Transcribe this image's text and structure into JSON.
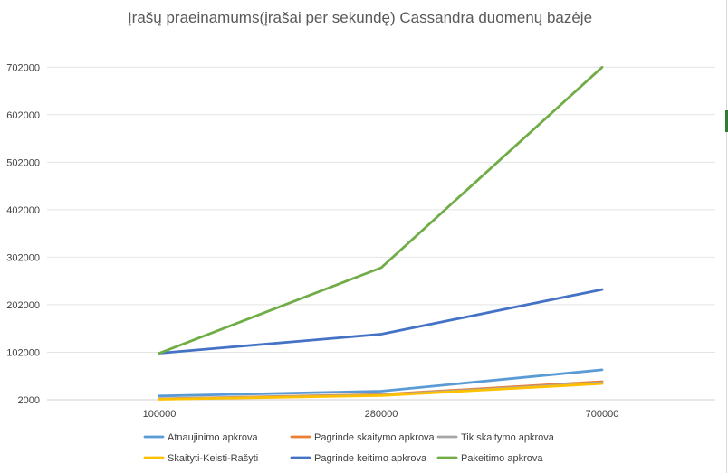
{
  "chart_data": {
    "type": "line",
    "title": "Įrašų praeinamums(įrašai per sekundę) Cassandra duomenų bazėje",
    "xlabel": "",
    "ylabel": "",
    "categories": [
      "100000",
      "280000",
      "700000"
    ],
    "ylim": [
      2000,
      752000
    ],
    "yticks": [
      2000,
      102000,
      202000,
      302000,
      402000,
      502000,
      602000,
      702000
    ],
    "grid": true,
    "legend_position": "bottom",
    "series": [
      {
        "name": "Atnaujinimo apkrova",
        "color": "#5b9bd5",
        "values": [
          10000,
          20000,
          65000
        ]
      },
      {
        "name": "Pagrinde skaitymo apkrova",
        "color": "#ed7d31",
        "values": [
          4000,
          13000,
          40000
        ]
      },
      {
        "name": "Tik skaitymo apkrova",
        "color": "#a5a5a5",
        "values": [
          3500,
          12000,
          38000
        ]
      },
      {
        "name": "Skaityti-Keisti-Rašyti",
        "color": "#ffc000",
        "values": [
          3000,
          11000,
          36000
        ]
      },
      {
        "name": "Pagrinde keitimo apkrova",
        "color": "#4472c4",
        "values": [
          100000,
          140000,
          234000
        ]
      },
      {
        "name": "Pakeitimo apkrova",
        "color": "#70ad47",
        "values": [
          100000,
          280000,
          702000
        ]
      }
    ]
  }
}
